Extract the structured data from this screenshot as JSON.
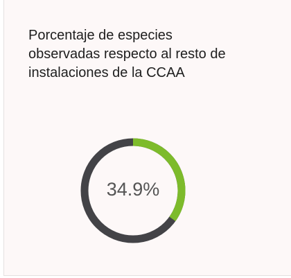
{
  "chart_data": {
    "type": "donut",
    "title": "Porcentaje de especies observadas respecto al resto de instalaciones de la CCAA",
    "values": [
      34.9
    ],
    "value_labels": [
      "34.9%"
    ],
    "color": "#7dbb2b",
    "track_color": "#434347"
  }
}
